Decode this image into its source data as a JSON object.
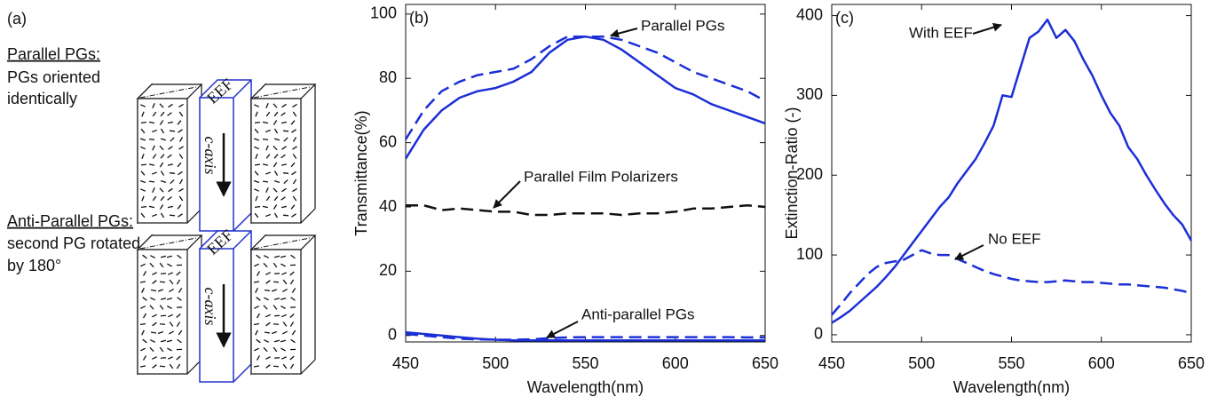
{
  "panel_a": {
    "label": "(a)",
    "groups": [
      {
        "title": "Parallel PGs:",
        "lines": [
          "PGs oriented",
          "identically"
        ],
        "eef": "EEF",
        "axis": "c-axis"
      },
      {
        "title": "Anti-Parallel PGs:",
        "lines": [
          "second PG rotated",
          "by 180°"
        ],
        "eef": "EEF",
        "axis": "c-axis"
      }
    ]
  },
  "chart_data": [
    {
      "type": "line",
      "label": "(b)",
      "xlabel": "Wavelength(nm)",
      "ylabel": "Transmittance(%)",
      "xlim": [
        450,
        650
      ],
      "xticks": [
        450,
        500,
        550,
        600,
        650
      ],
      "ylim": [
        -2,
        103
      ],
      "yticks": [
        0,
        20,
        40,
        60,
        80,
        100
      ],
      "x": [
        450,
        460,
        470,
        480,
        490,
        500,
        510,
        520,
        530,
        540,
        550,
        560,
        570,
        580,
        590,
        600,
        610,
        620,
        630,
        640,
        650
      ],
      "series": [
        {
          "color": "#1c2fd6",
          "dash": false,
          "values": [
            55,
            64,
            70,
            74,
            76,
            77,
            79,
            82,
            88,
            92,
            93,
            92,
            89,
            85,
            81,
            77,
            75,
            72,
            70,
            68,
            66
          ]
        },
        {
          "color": "#1c2fd6",
          "dash": true,
          "values": [
            61,
            70,
            76,
            79,
            81,
            82,
            83,
            86,
            90,
            93,
            93,
            93,
            92,
            90,
            88,
            85,
            82,
            80,
            78,
            76,
            73
          ]
        },
        {
          "color": "#111111",
          "dash": true,
          "values": [
            40.5,
            40.5,
            39,
            39.5,
            39,
            38.5,
            38.5,
            37.5,
            37.5,
            38,
            38,
            38,
            37.5,
            38,
            38,
            38.5,
            39.5,
            39.5,
            40,
            40.5,
            40
          ]
        },
        {
          "color": "#1c2fd6",
          "dash": false,
          "values": [
            1,
            0.5,
            0,
            -0.5,
            -1,
            -1.3,
            -1.5,
            -1.5,
            -1.5,
            -1.5,
            -1.5,
            -1.5,
            -1.5,
            -1.5,
            -1.5,
            -1.5,
            -1.5,
            -1.5,
            -1.5,
            -1.5,
            -1.5
          ]
        },
        {
          "color": "#1c2fd6",
          "dash": true,
          "values": [
            0.5,
            0,
            -0.5,
            -1,
            -1.2,
            -1.3,
            -1.3,
            -1.2,
            -0.8,
            -0.6,
            -0.5,
            -0.5,
            -0.5,
            -0.5,
            -0.5,
            -0.5,
            -0.5,
            -0.5,
            -0.5,
            -0.6,
            -0.6
          ]
        }
      ],
      "annotations": [
        "Parallel PGs",
        "Parallel Film Polarizers",
        "Anti-parallel PGs"
      ]
    },
    {
      "type": "line",
      "label": "(c)",
      "xlabel": "Wavelength(nm)",
      "ylabel": "Extinction-Ratio (-)",
      "xlim": [
        450,
        650
      ],
      "xticks": [
        450,
        500,
        550,
        600,
        650
      ],
      "ylim": [
        -9,
        414
      ],
      "yticks": [
        0,
        100,
        200,
        300,
        400
      ],
      "x": [
        450,
        455,
        460,
        465,
        470,
        475,
        480,
        485,
        490,
        495,
        500,
        505,
        510,
        515,
        520,
        525,
        530,
        535,
        540,
        545,
        550,
        555,
        560,
        565,
        570,
        575,
        580,
        585,
        590,
        595,
        600,
        605,
        610,
        615,
        620,
        625,
        630,
        635,
        640,
        645,
        650
      ],
      "series": [
        {
          "color": "#1c2fd6",
          "dash": false,
          "values": [
            15,
            22,
            30,
            40,
            50,
            60,
            72,
            85,
            100,
            115,
            130,
            145,
            160,
            172,
            190,
            205,
            220,
            240,
            262,
            300,
            298,
            335,
            372,
            380,
            395,
            372,
            382,
            368,
            345,
            325,
            300,
            278,
            262,
            235,
            220,
            200,
            182,
            165,
            150,
            138,
            118
          ]
        },
        {
          "color": "#1c2fd6",
          "dash": true,
          "values": [
            25,
            38,
            52,
            64,
            76,
            85,
            90,
            92,
            94,
            100,
            106,
            102,
            100,
            100,
            95,
            90,
            85,
            80,
            76,
            73,
            70,
            68,
            67,
            66,
            66,
            67,
            68,
            67,
            66,
            66,
            65,
            64,
            63,
            63,
            62,
            61,
            60,
            59,
            57,
            55,
            52
          ]
        }
      ],
      "annotations": [
        "With EEF",
        "No EEF"
      ]
    }
  ]
}
